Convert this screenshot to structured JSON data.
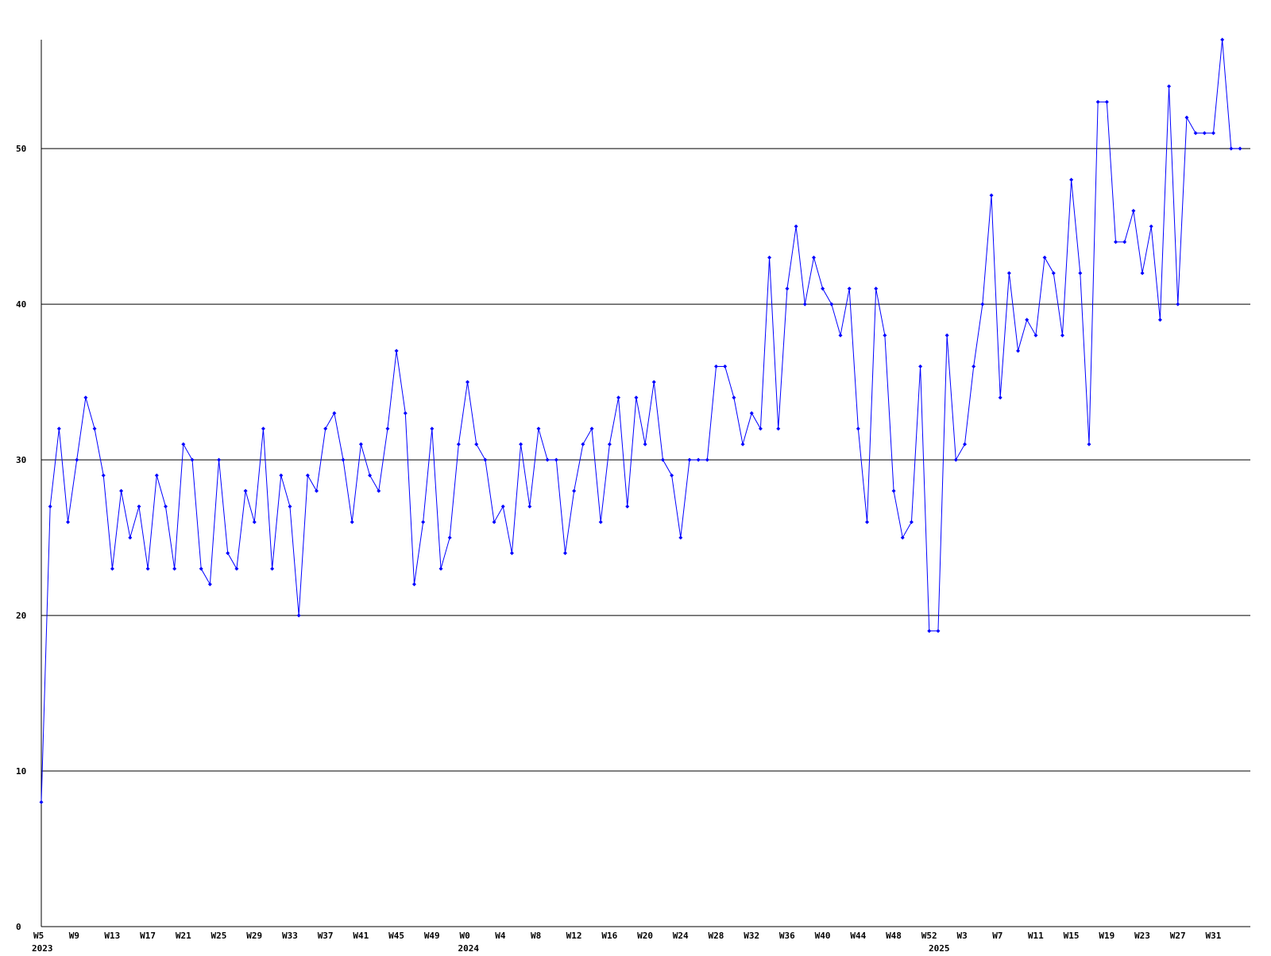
{
  "chart_data": {
    "type": "line",
    "categories": [
      "W5",
      null,
      null,
      null,
      "W9",
      null,
      null,
      null,
      "W13",
      null,
      null,
      null,
      "W17",
      null,
      null,
      null,
      "W21",
      null,
      null,
      null,
      "W25",
      null,
      null,
      null,
      "W29",
      null,
      null,
      null,
      "W33",
      null,
      null,
      null,
      "W37",
      null,
      null,
      null,
      "W41",
      null,
      null,
      null,
      "W45",
      null,
      null,
      null,
      "W49",
      null,
      null,
      null,
      "W0",
      null,
      null,
      null,
      "W4",
      null,
      null,
      null,
      "W8",
      null,
      null,
      null,
      "W12",
      null,
      null,
      null,
      "W16",
      null,
      null,
      null,
      "W20",
      null,
      null,
      null,
      "W24",
      null,
      null,
      null,
      "W28",
      null,
      null,
      null,
      "W32",
      null,
      null,
      null,
      "W36",
      null,
      null,
      null,
      "W40",
      null,
      null,
      null,
      "W44",
      null,
      null,
      null,
      "W48",
      null,
      null,
      null,
      "W52",
      null,
      null,
      null,
      "W3",
      null,
      null,
      null,
      "W7",
      null,
      null,
      null,
      "W11",
      null,
      null,
      null,
      "W15",
      null,
      null,
      null,
      "W19",
      null,
      null,
      null,
      "W23",
      null,
      null,
      null,
      "W27",
      null,
      null,
      null,
      "W31",
      null,
      null,
      null
    ],
    "year_labels": [
      "2023",
      null,
      null,
      null,
      null,
      null,
      null,
      null,
      null,
      null,
      null,
      null,
      null,
      null,
      null,
      null,
      null,
      null,
      null,
      null,
      null,
      null,
      null,
      null,
      null,
      null,
      null,
      null,
      null,
      null,
      null,
      null,
      null,
      null,
      null,
      null,
      null,
      null,
      null,
      null,
      null,
      null,
      null,
      null,
      null,
      null,
      null,
      null,
      "2024",
      null,
      null,
      null,
      null,
      null,
      null,
      null,
      null,
      null,
      null,
      null,
      null,
      null,
      null,
      null,
      null,
      null,
      null,
      null,
      null,
      null,
      null,
      null,
      null,
      null,
      null,
      null,
      null,
      null,
      null,
      null,
      null,
      null,
      null,
      null,
      null,
      null,
      null,
      null,
      null,
      null,
      null,
      null,
      null,
      null,
      null,
      null,
      null,
      null,
      null,
      null,
      null,
      "2025",
      null,
      null,
      null,
      null,
      null,
      null,
      null,
      null,
      null,
      null,
      null,
      null,
      null,
      null,
      null,
      null,
      null,
      null,
      null,
      null,
      null,
      null,
      null,
      null,
      null,
      null,
      null,
      null,
      null,
      null,
      null,
      null,
      null,
      null
    ],
    "series": [
      {
        "color": "#0000ff",
        "values": [
          8,
          27,
          32,
          26,
          30,
          34,
          32,
          29,
          23,
          28,
          25,
          27,
          23,
          29,
          27,
          23,
          31,
          30,
          23,
          22,
          30,
          24,
          23,
          28,
          26,
          32,
          23,
          29,
          27,
          20,
          29,
          28,
          32,
          33,
          30,
          26,
          31,
          29,
          28,
          32,
          37,
          33,
          22,
          26,
          32,
          23,
          25,
          31,
          35,
          31,
          30,
          26,
          27,
          24,
          31,
          27,
          32,
          30,
          30,
          24,
          28,
          31,
          32,
          26,
          31,
          34,
          27,
          34,
          31,
          35,
          30,
          29,
          25,
          30,
          30,
          30,
          36,
          36,
          34,
          31,
          33,
          32,
          43,
          32,
          41,
          45,
          40,
          43,
          41,
          40,
          38,
          41,
          32,
          26,
          41,
          38,
          28,
          25,
          26,
          36,
          19,
          19,
          38,
          30,
          31,
          36,
          40,
          47,
          34,
          42,
          37,
          39,
          38,
          43,
          42,
          38,
          48,
          42,
          31,
          53,
          53,
          44,
          44,
          46,
          42,
          45,
          39,
          54,
          40,
          52,
          51,
          51,
          51,
          57,
          50,
          50
        ]
      }
    ],
    "ylim": [
      0,
      57
    ],
    "yticks": [
      0,
      10,
      20,
      30,
      40,
      50
    ],
    "grid": true
  }
}
